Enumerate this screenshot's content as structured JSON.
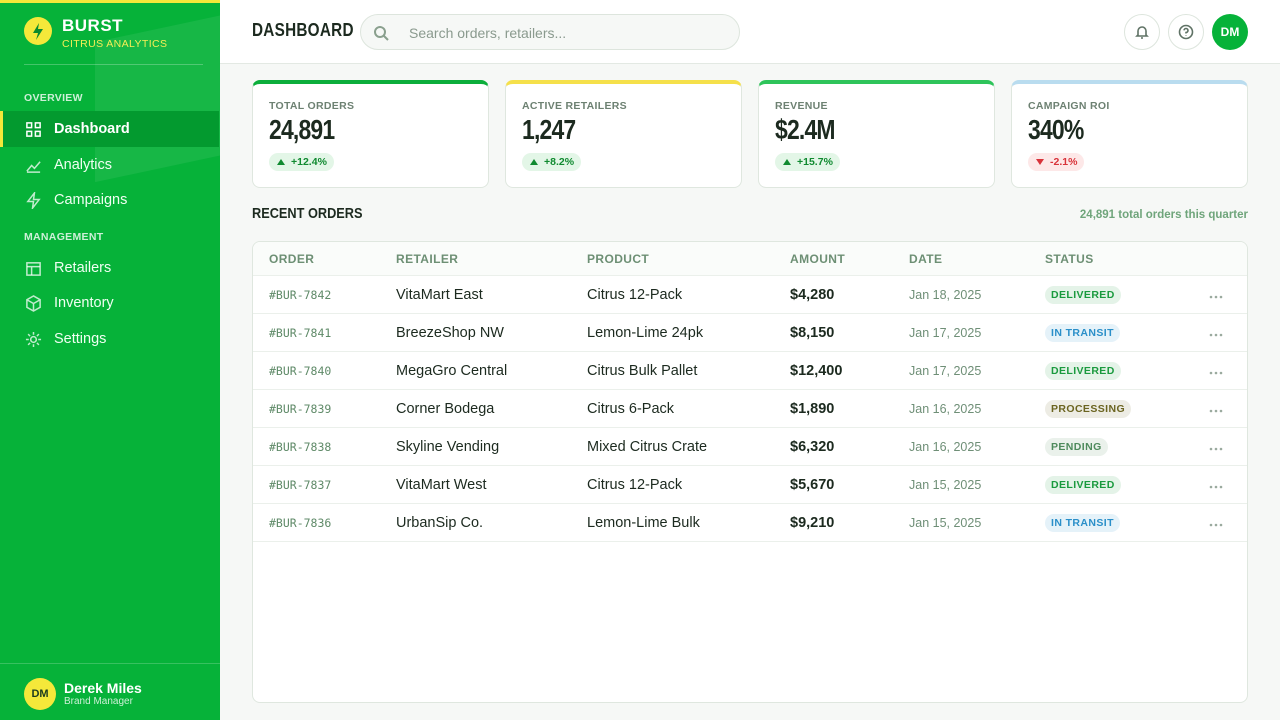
{
  "sidebar": {
    "brand": "BURST",
    "tagline": "CITRUS ANALYTICS",
    "sections": [
      {
        "title": "OVERVIEW",
        "items": [
          "Dashboard",
          "Analytics",
          "Campaigns"
        ]
      },
      {
        "title": "MANAGEMENT",
        "items": [
          "Retailers",
          "Inventory",
          "Settings"
        ]
      }
    ],
    "user": {
      "initials": "DM",
      "name": "Derek Miles",
      "role": "Brand Manager"
    }
  },
  "header": {
    "title": "DASHBOARD",
    "search_placeholder": "Search orders, retailers...",
    "avatar": "DM"
  },
  "stats": [
    {
      "label": "TOTAL ORDERS",
      "value": "24,891",
      "change": "+12.4%",
      "color": "#0cae3b"
    },
    {
      "label": "ACTIVE RETAILERS",
      "value": "1,247",
      "change": "+8.2%",
      "color": "#f5e04a"
    },
    {
      "label": "REVENUE",
      "value": "$2.4M",
      "change": "+15.7%",
      "color": "#2ec45a"
    },
    {
      "label": "CAMPAIGN ROI",
      "value": "340%",
      "change": "-2.1%",
      "color": "#b9dcef"
    }
  ],
  "orders": {
    "title": "RECENT ORDERS",
    "summary": "24,891 total orders this quarter",
    "columns": [
      "ORDER",
      "RETAILER",
      "PRODUCT",
      "AMOUNT",
      "DATE",
      "STATUS"
    ],
    "rows": [
      {
        "cells": [
          "#BUR-7842",
          "VitaMart East",
          "Citrus 12-Pack",
          "$4,280",
          "Jan 18, 2025",
          "DELIVERED"
        ],
        "status_color": "#1a9a3e"
      },
      {
        "cells": [
          "#BUR-7841",
          "BreezeShop NW",
          "Lemon-Lime 24pk",
          "$8,150",
          "Jan 17, 2025",
          "IN TRANSIT"
        ],
        "status_color": "#2a8fc9"
      },
      {
        "cells": [
          "#BUR-7840",
          "MegaGro Central",
          "Citrus Bulk Pallet",
          "$12,400",
          "Jan 17, 2025",
          "DELIVERED"
        ],
        "status_color": "#1a9a3e"
      },
      {
        "cells": [
          "#BUR-7839",
          "Corner Bodega",
          "Citrus 6-Pack",
          "$1,890",
          "Jan 16, 2025",
          "PROCESSING"
        ],
        "status_color": "#6b6420"
      },
      {
        "cells": [
          "#BUR-7838",
          "Skyline Vending",
          "Mixed Citrus Crate",
          "$6,320",
          "Jan 16, 2025",
          "PENDING"
        ],
        "status_color": "#4e8a5c"
      },
      {
        "cells": [
          "#BUR-7837",
          "VitaMart West",
          "Citrus 12-Pack",
          "$5,670",
          "Jan 15, 2025",
          "DELIVERED"
        ],
        "status_color": "#1a9a3e"
      },
      {
        "cells": [
          "#BUR-7836",
          "UrbanSip Co.",
          "Lemon-Lime Bulk",
          "$9,210",
          "Jan 15, 2025",
          "IN TRANSIT"
        ],
        "status_color": "#2a8fc9"
      }
    ]
  }
}
